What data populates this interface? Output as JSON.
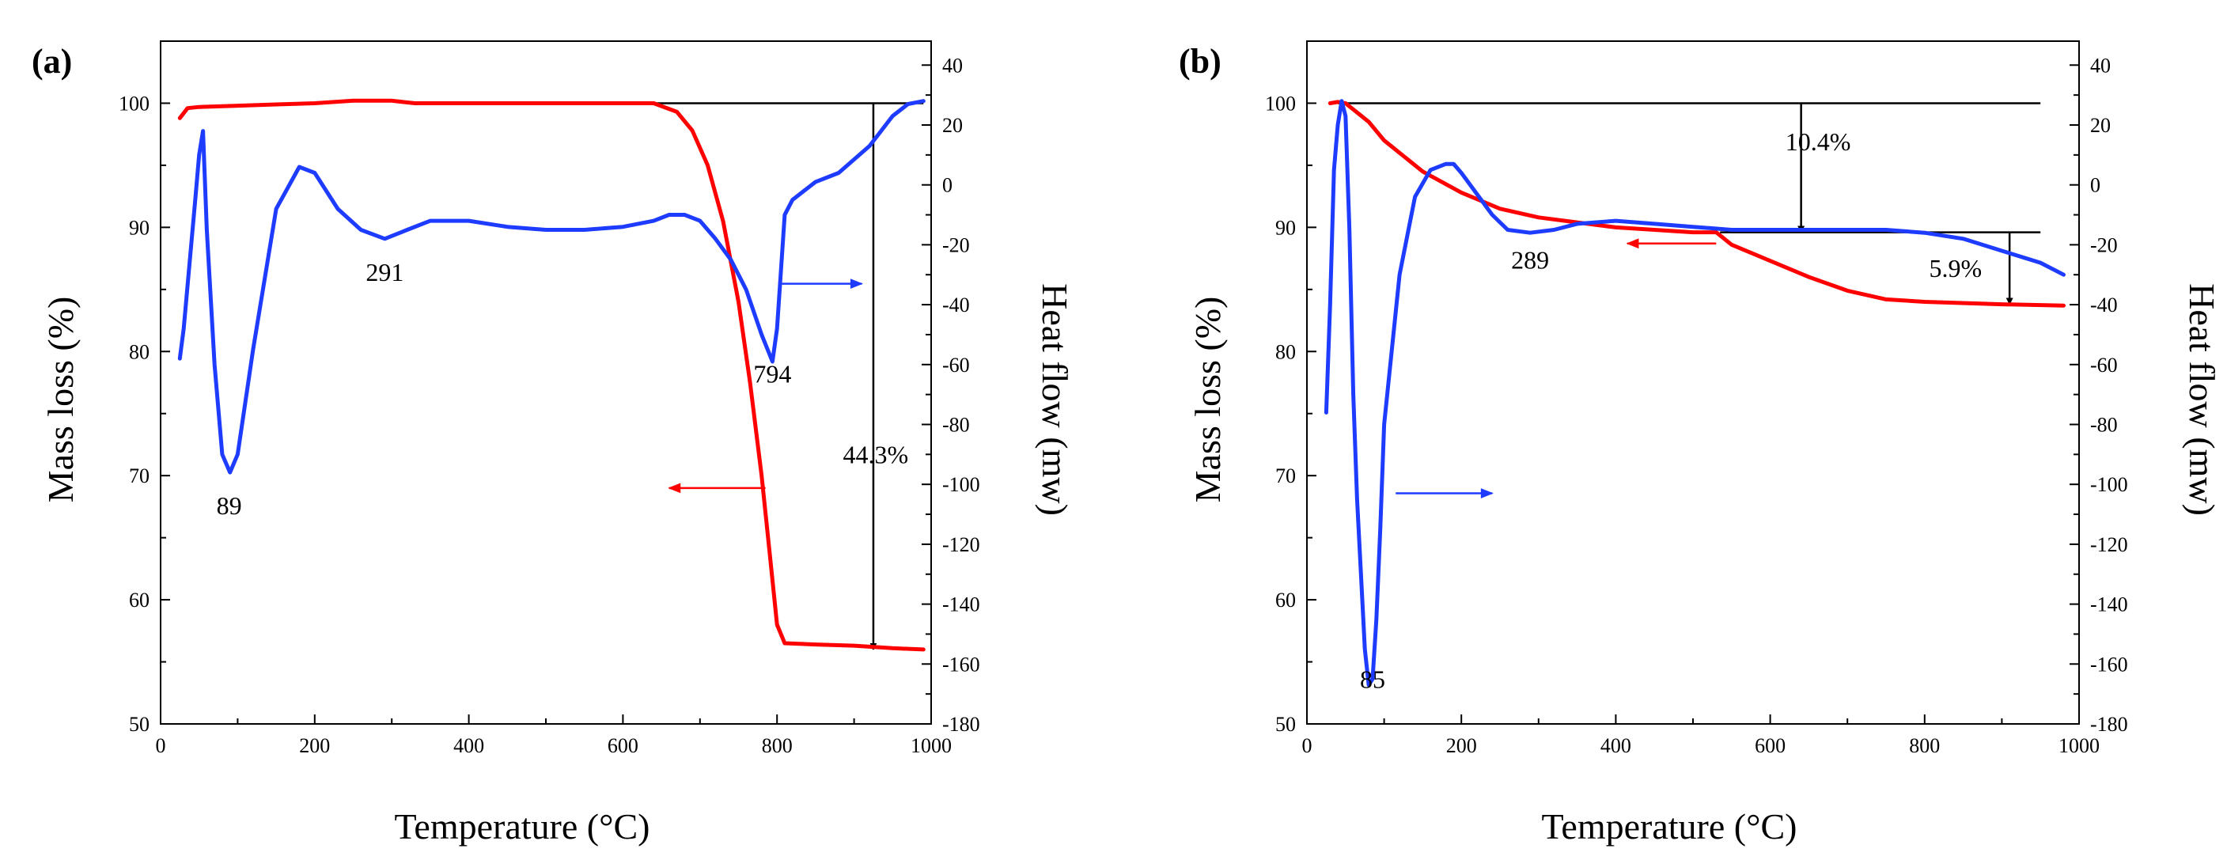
{
  "figure": {
    "xlabel": "Temperature (°C)"
  },
  "colors": {
    "mass": "#ff0000",
    "heat": "#1e3cff",
    "axis": "#000000"
  },
  "chart_data": [
    {
      "type": "line",
      "panel_label": "(a)",
      "xlabel": "Temperature (°C)",
      "ylabel": "Mass loss (%)",
      "y2label": "Heat flow (mw)",
      "xlim": [
        0,
        1000
      ],
      "ylim": [
        50,
        105
      ],
      "y2lim": [
        -180,
        48
      ],
      "xticks": [
        "0",
        "200",
        "400",
        "600",
        "800",
        "1000"
      ],
      "yticks": [
        "50",
        "60",
        "70",
        "80",
        "90",
        "100"
      ],
      "y2ticks": [
        "-180",
        "-160",
        "-140",
        "-120",
        "-100",
        "-80",
        "-60",
        "-40",
        "-20",
        "0",
        "20",
        "40"
      ],
      "series": [
        {
          "name": "Mass loss",
          "axis": "left",
          "x": [
            25,
            35,
            50,
            100,
            150,
            200,
            250,
            300,
            330,
            400,
            500,
            600,
            640,
            670,
            690,
            710,
            730,
            750,
            765,
            780,
            790,
            800,
            810,
            850,
            900,
            950,
            990
          ],
          "y": [
            98.8,
            99.6,
            99.7,
            99.8,
            99.9,
            100.0,
            100.2,
            100.2,
            100.0,
            100.0,
            100.0,
            100.0,
            100.0,
            99.3,
            97.8,
            95.0,
            90.5,
            84.0,
            77.5,
            70.0,
            64.0,
            58.0,
            56.5,
            56.4,
            56.3,
            56.1,
            56.0
          ]
        },
        {
          "name": "Heat flow",
          "axis": "right",
          "x": [
            25,
            30,
            38,
            45,
            50,
            55,
            60,
            70,
            80,
            90,
            100,
            120,
            150,
            180,
            200,
            230,
            260,
            291,
            320,
            350,
            380,
            400,
            450,
            500,
            550,
            600,
            640,
            660,
            680,
            700,
            720,
            740,
            760,
            780,
            794,
            800,
            810,
            820,
            850,
            880,
            920,
            950,
            970,
            990
          ],
          "y": [
            -58,
            -48,
            -25,
            -5,
            10,
            18,
            -15,
            -60,
            -90,
            -96,
            -90,
            -55,
            -8,
            6,
            4,
            -8,
            -15,
            -18,
            -15,
            -12,
            -12,
            -12,
            -14,
            -15,
            -15,
            -14,
            -12,
            -10,
            -10,
            -12,
            -18,
            -25,
            -35,
            -50,
            -59,
            -48,
            -10,
            -5,
            1,
            4,
            13,
            23,
            27,
            28
          ]
        }
      ],
      "annotations": [
        {
          "text": "89",
          "x": 89,
          "y": -110,
          "axis": "right"
        },
        {
          "text": "291",
          "x": 291,
          "y": -32,
          "axis": "right"
        },
        {
          "text": "794",
          "x": 794,
          "y": -66,
          "axis": "right"
        },
        {
          "text": "44.3%",
          "x": 928,
          "y": 71,
          "axis": "left"
        }
      ],
      "reference_lines": [
        {
          "kind": "horizontal",
          "x_from": 630,
          "x_to": 990,
          "y": 100,
          "axis": "left"
        },
        {
          "kind": "arrow-down",
          "x": 925,
          "y_from": 100,
          "y_to": 56,
          "axis": "left"
        }
      ],
      "legend_arrows": [
        {
          "series": "Heat flow",
          "direction": "right",
          "x_from": 805,
          "x_to": 910,
          "y": -33,
          "axis": "right"
        },
        {
          "series": "Mass loss",
          "direction": "left",
          "x_from": 785,
          "x_to": 660,
          "y": 69,
          "axis": "left"
        }
      ]
    },
    {
      "type": "line",
      "panel_label": "(b)",
      "xlabel": "Temperature (°C)",
      "ylabel": "Mass loss (%)",
      "y2label": "Heat flow (mw)",
      "xlim": [
        0,
        1000
      ],
      "ylim": [
        50,
        105
      ],
      "y2lim": [
        -180,
        48
      ],
      "xticks": [
        "0",
        "200",
        "400",
        "600",
        "800",
        "1000"
      ],
      "yticks": [
        "50",
        "60",
        "70",
        "80",
        "90",
        "100"
      ],
      "y2ticks": [
        "-180",
        "-160",
        "-140",
        "-120",
        "-100",
        "-80",
        "-60",
        "-40",
        "-20",
        "0",
        "20",
        "40"
      ],
      "series": [
        {
          "name": "Mass loss",
          "axis": "left",
          "x": [
            30,
            40,
            50,
            60,
            80,
            100,
            150,
            200,
            250,
            300,
            350,
            400,
            450,
            500,
            530,
            550,
            600,
            650,
            700,
            750,
            800,
            900,
            980
          ],
          "y": [
            100.0,
            100.1,
            100.0,
            99.5,
            98.5,
            97.0,
            94.5,
            92.8,
            91.5,
            90.8,
            90.4,
            90.0,
            89.8,
            89.6,
            89.6,
            88.6,
            87.3,
            86.0,
            84.9,
            84.2,
            84.0,
            83.8,
            83.7
          ]
        },
        {
          "name": "Heat flow",
          "axis": "right",
          "x": [
            25,
            30,
            35,
            40,
            45,
            50,
            55,
            60,
            65,
            70,
            75,
            80,
            85,
            90,
            95,
            100,
            120,
            140,
            160,
            180,
            190,
            200,
            220,
            240,
            260,
            289,
            320,
            350,
            400,
            450,
            500,
            550,
            600,
            650,
            700,
            750,
            800,
            850,
            900,
            950,
            980
          ],
          "y": [
            -76,
            -40,
            5,
            20,
            28,
            23,
            -15,
            -70,
            -105,
            -130,
            -155,
            -167,
            -165,
            -145,
            -115,
            -80,
            -30,
            -4,
            5,
            7,
            7,
            4,
            -3,
            -10,
            -15,
            -16,
            -15,
            -13,
            -12,
            -13,
            -14,
            -15,
            -15,
            -15,
            -15,
            -15,
            -16,
            -18,
            -22,
            -26,
            -30
          ]
        }
      ],
      "annotations": [
        {
          "text": "85",
          "x": 85,
          "y": -168,
          "axis": "right"
        },
        {
          "text": "289",
          "x": 289,
          "y": -28,
          "axis": "right"
        },
        {
          "text": "10.4%",
          "x": 662,
          "y": 96.2,
          "axis": "left"
        },
        {
          "text": "5.9%",
          "x": 840,
          "y": 86.0,
          "axis": "left"
        }
      ],
      "reference_lines": [
        {
          "kind": "horizontal",
          "x_from": 40,
          "x_to": 950,
          "y": 100,
          "axis": "left"
        },
        {
          "kind": "horizontal",
          "x_from": 535,
          "x_to": 950,
          "y": 89.6,
          "axis": "left"
        },
        {
          "kind": "arrow-down",
          "x": 640,
          "y_from": 100,
          "y_to": 89.6,
          "axis": "left"
        },
        {
          "kind": "arrow-down",
          "x": 910,
          "y_from": 89.6,
          "y_to": 83.8,
          "axis": "left"
        }
      ],
      "legend_arrows": [
        {
          "series": "Heat flow",
          "direction": "right",
          "x_from": 115,
          "x_to": 240,
          "y": -103,
          "axis": "right"
        },
        {
          "series": "Mass loss",
          "direction": "left",
          "x_from": 530,
          "x_to": 415,
          "y": 88.7,
          "axis": "left"
        }
      ]
    }
  ]
}
